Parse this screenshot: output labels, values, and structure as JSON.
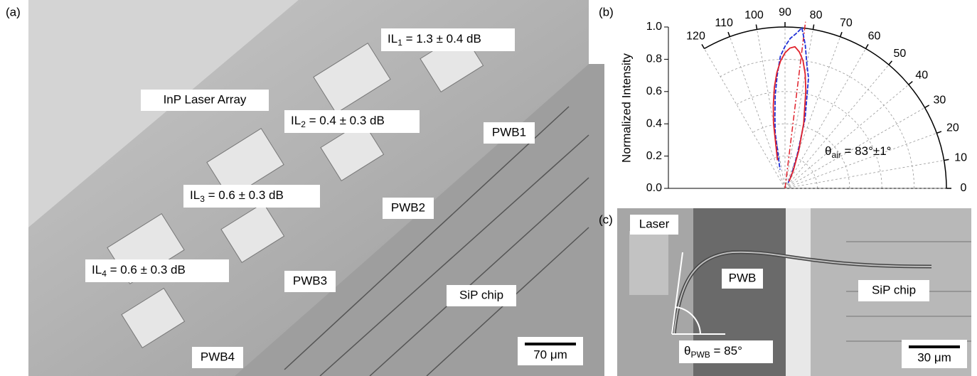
{
  "panel_a": {
    "label": "(a)",
    "loss_labels": [
      {
        "prefix": "IL",
        "sub": "1",
        "rest": " = 1.3 ± 0.4 dB"
      },
      {
        "prefix": "IL",
        "sub": "2",
        "rest": " = 0.4 ± 0.3 dB"
      },
      {
        "prefix": "IL",
        "sub": "3",
        "rest": " = 0.6 ± 0.3 dB"
      },
      {
        "prefix": "IL",
        "sub": "4",
        "rest": " = 0.6 ± 0.3 dB"
      }
    ],
    "laser_label": "InP Laser Array",
    "wire_labels": [
      "PWB1",
      "PWB2",
      "PWB3",
      "PWB4"
    ],
    "chip_label": "SiP chip",
    "scale_bar": "70 μm"
  },
  "chart_data": {
    "type": "polar",
    "panel_label": "(b)",
    "ylabel": "Normalized Intensity",
    "rlim": [
      0,
      1
    ],
    "rticks": [
      {
        "value": 0,
        "label": "0.0"
      },
      0.2,
      0.4,
      0.6,
      0.8,
      {
        "value": 1,
        "label": "1.0"
      }
    ],
    "thetalim": [
      0,
      120
    ],
    "thetaticks": [
      0,
      10,
      20,
      30,
      40,
      50,
      60,
      70,
      80,
      90,
      100,
      110,
      120
    ],
    "grid": true,
    "reference_angle": 83,
    "series": [
      {
        "color": "#1f2fd6",
        "style": "dashed",
        "x": [
          60,
          65,
          70,
          74,
          78,
          80,
          82,
          84,
          86,
          88,
          90,
          92,
          94,
          96,
          98,
          100,
          105
        ],
        "values": [
          0.04,
          0.1,
          0.22,
          0.45,
          0.7,
          0.78,
          0.9,
          1.0,
          0.96,
          0.93,
          0.88,
          0.82,
          0.7,
          0.58,
          0.45,
          0.35,
          0.12
        ]
      },
      {
        "color": "#e0202a",
        "style": "solid",
        "x": [
          60,
          65,
          70,
          74,
          78,
          80,
          82,
          84,
          86,
          88,
          90,
          92,
          94,
          96,
          98,
          100,
          105
        ],
        "values": [
          0.05,
          0.12,
          0.25,
          0.42,
          0.62,
          0.72,
          0.8,
          0.85,
          0.88,
          0.87,
          0.84,
          0.79,
          0.72,
          0.63,
          0.52,
          0.41,
          0.18
        ]
      }
    ],
    "annotation": {
      "symbol": "θ",
      "sub": "air",
      "rest": " = 83°±1°"
    }
  },
  "panel_c": {
    "label": "(c)",
    "laser_label": "Laser",
    "wire_label": "PWB",
    "chip_label": "SiP chip",
    "angle_label": {
      "symbol": "θ",
      "sub": "PWB",
      "rest": " = 85°"
    },
    "scale_bar": "30 μm"
  }
}
